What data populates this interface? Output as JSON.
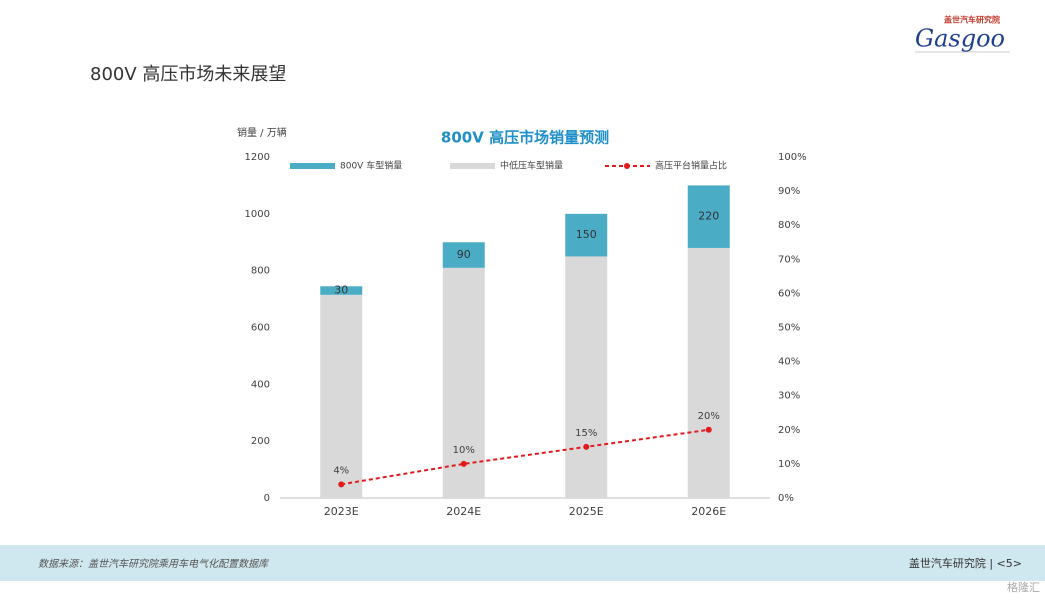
{
  "slide": {
    "heading": "800V 高压市场未来展望",
    "logo": {
      "name": "Gasgoo",
      "org": "盖世汽车研究院"
    },
    "footer": {
      "source": "数据来源：盖世汽车研究院乘用车电气化配置数据库",
      "brand": "盖世汽车研究院 | <5>",
      "corner": "格隆汇"
    }
  },
  "chart_data": {
    "type": "bar",
    "title": "800V 高压市场销量预测",
    "y_label": "销量 / 万辆",
    "categories": [
      "2023E",
      "2024E",
      "2025E",
      "2026E"
    ],
    "series": [
      {
        "name": "800V 车型销量",
        "type": "bar",
        "color": "#4bacc6",
        "values": [
          30,
          90,
          150,
          220
        ]
      },
      {
        "name": "中低压车型销量",
        "type": "bar",
        "color": "#d9d9d9",
        "values": [
          715,
          810,
          850,
          880
        ]
      },
      {
        "name": "高压平台销量占比",
        "type": "line",
        "axis": "y2",
        "color": "#e31a1c",
        "values": [
          4,
          10,
          15,
          20
        ],
        "value_labels": [
          "4%",
          "10%",
          "15%",
          "20%"
        ]
      }
    ],
    "ylim": [
      0,
      1200
    ],
    "yticks": [
      0,
      200,
      400,
      600,
      800,
      1000,
      1200
    ],
    "y2lim": [
      0,
      100
    ],
    "y2ticks": [
      {
        "value": 0,
        "label": "0%"
      },
      {
        "value": 10,
        "label": "10%"
      },
      {
        "value": 20,
        "label": "20%"
      },
      {
        "value": 30,
        "label": "30%"
      },
      {
        "value": 40,
        "label": "40%"
      },
      {
        "value": 50,
        "label": "50%"
      },
      {
        "value": 60,
        "label": "60%"
      },
      {
        "value": 70,
        "label": "70%"
      },
      {
        "value": 80,
        "label": "80%"
      },
      {
        "value": 90,
        "label": "90%"
      },
      {
        "value": 100,
        "label": "100%"
      }
    ],
    "grid": false,
    "legend": "top"
  }
}
